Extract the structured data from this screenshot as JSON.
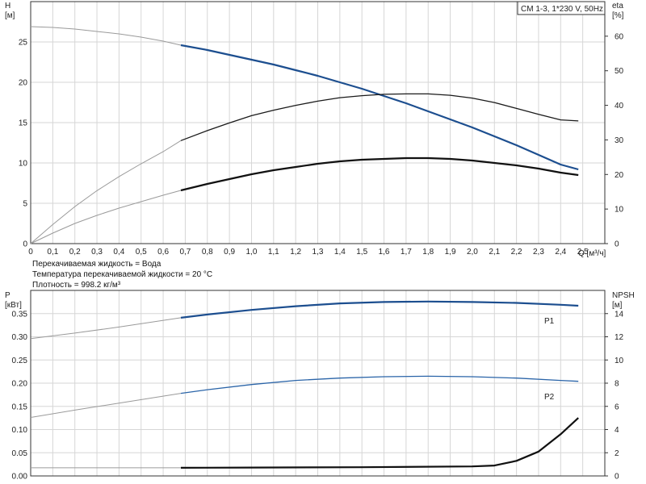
{
  "chart_data": [
    {
      "type": "line",
      "title": "",
      "model_label": "CM 1-3, 1*230 V, 50Hz",
      "xlabel": "Q [м³/ч]",
      "ylabel_left": [
        "H",
        "[м]"
      ],
      "ylabel_right": [
        "eta",
        "[%]"
      ],
      "xlim": [
        0,
        2.6
      ],
      "ylim_left": [
        0,
        30
      ],
      "ylim_right": [
        0,
        70
      ],
      "x_ticks": [
        0,
        0.1,
        0.2,
        0.3,
        0.4,
        0.5,
        0.6,
        0.7,
        0.8,
        0.9,
        1.0,
        1.1,
        1.2,
        1.3,
        1.4,
        1.5,
        1.6,
        1.7,
        1.8,
        1.9,
        2.0,
        2.1,
        2.2,
        2.3,
        2.4,
        2.5
      ],
      "x_tick_labels": [
        "0",
        "0,1",
        "0,2",
        "0,3",
        "0,4",
        "0,5",
        "0,6",
        "0,7",
        "0,8",
        "0,9",
        "1,0",
        "1,1",
        "1,2",
        "1,3",
        "1,4",
        "1,5",
        "1,6",
        "1,7",
        "1,8",
        "1,9",
        "2,0",
        "2,1",
        "2,2",
        "2,3",
        "2,4",
        "2,5"
      ],
      "y_ticks_left": [
        0,
        5,
        10,
        15,
        20,
        25
      ],
      "y_ticks_right": [
        0,
        10,
        20,
        30,
        40,
        50,
        60
      ],
      "grid": true,
      "series": [
        {
          "axis": "left",
          "color": "#1c4e8f",
          "width": 2.2,
          "x": [
            0,
            0.1,
            0.2,
            0.3,
            0.4,
            0.5,
            0.6,
            0.68,
            0.8,
            0.9,
            1.0,
            1.1,
            1.2,
            1.3,
            1.4,
            1.5,
            1.6,
            1.7,
            1.8,
            1.9,
            2.0,
            2.1,
            2.2,
            2.3,
            2.4,
            2.48
          ],
          "y": [
            26.9,
            26.8,
            26.6,
            26.3,
            26.0,
            25.6,
            25.1,
            24.6,
            24.0,
            23.4,
            22.8,
            22.2,
            21.5,
            20.8,
            20.0,
            19.2,
            18.3,
            17.4,
            16.4,
            15.4,
            14.4,
            13.3,
            12.2,
            11.0,
            9.8,
            9.2
          ]
        },
        {
          "axis": "right",
          "color": "#1a1a1a",
          "width": 1.3,
          "x": [
            0,
            0.1,
            0.2,
            0.3,
            0.4,
            0.5,
            0.6,
            0.68,
            0.8,
            0.9,
            1.0,
            1.1,
            1.2,
            1.3,
            1.4,
            1.5,
            1.6,
            1.7,
            1.8,
            1.9,
            2.0,
            2.1,
            2.2,
            2.3,
            2.4,
            2.48
          ],
          "y": [
            0,
            5.5,
            10.7,
            15.3,
            19.4,
            23.1,
            26.6,
            29.8,
            32.7,
            34.9,
            37.0,
            38.6,
            40.0,
            41.2,
            42.2,
            42.8,
            43.2,
            43.3,
            43.3,
            42.9,
            42.1,
            40.8,
            39.1,
            37.4,
            35.8,
            35.5
          ]
        },
        {
          "axis": "left",
          "color": "#111111",
          "width": 2.2,
          "x": [
            0,
            0.1,
            0.2,
            0.3,
            0.4,
            0.5,
            0.6,
            0.68,
            0.8,
            0.9,
            1.0,
            1.1,
            1.2,
            1.3,
            1.4,
            1.5,
            1.6,
            1.7,
            1.8,
            1.9,
            2.0,
            2.1,
            2.2,
            2.3,
            2.4,
            2.48
          ],
          "y": [
            0,
            1.3,
            2.5,
            3.5,
            4.4,
            5.2,
            6.0,
            6.6,
            7.4,
            8.0,
            8.6,
            9.1,
            9.5,
            9.9,
            10.2,
            10.4,
            10.5,
            10.6,
            10.6,
            10.5,
            10.3,
            10.0,
            9.7,
            9.3,
            8.8,
            8.5
          ]
        }
      ],
      "notes": [
        "Перекачиваемая жидкость = Вода",
        "Температура перекачиваемой жидкости = 20 °C",
        "Плотность = 998.2 кг/м³"
      ]
    },
    {
      "type": "line",
      "title": "",
      "ylabel_left": [
        "P",
        "[кВт]"
      ],
      "ylabel_right": [
        "NPSH",
        "[м]"
      ],
      "xlim": [
        0,
        2.6
      ],
      "ylim_left": [
        0,
        0.4
      ],
      "ylim_right": [
        0,
        16
      ],
      "y_ticks_left": [
        0,
        0.05,
        0.1,
        0.15,
        0.2,
        0.25,
        0.3,
        0.35
      ],
      "y_tick_labels_left": [
        "0.00",
        "0.05",
        "0.10",
        "0.15",
        "0.20",
        "0.25",
        "0.30",
        "0.35"
      ],
      "y_ticks_right": [
        0,
        2,
        4,
        6,
        8,
        10,
        12,
        14
      ],
      "grid": true,
      "series": [
        {
          "name": "P1",
          "axis": "left",
          "color": "#1c4e8f",
          "width": 2.2,
          "x": [
            0,
            0.2,
            0.4,
            0.68,
            0.8,
            1.0,
            1.2,
            1.4,
            1.6,
            1.8,
            2.0,
            2.2,
            2.4,
            2.48
          ],
          "y": [
            0.296,
            0.308,
            0.321,
            0.341,
            0.348,
            0.358,
            0.366,
            0.372,
            0.375,
            0.376,
            0.375,
            0.373,
            0.369,
            0.367
          ]
        },
        {
          "name": "P2",
          "axis": "left",
          "color": "#2a64a8",
          "width": 1.3,
          "x": [
            0,
            0.2,
            0.4,
            0.68,
            0.8,
            1.0,
            1.2,
            1.4,
            1.6,
            1.8,
            2.0,
            2.2,
            2.4,
            2.48
          ],
          "y": [
            0.126,
            0.142,
            0.157,
            0.178,
            0.186,
            0.197,
            0.206,
            0.211,
            0.214,
            0.215,
            0.214,
            0.211,
            0.206,
            0.204
          ]
        },
        {
          "axis": "right",
          "color": "#111111",
          "width": 2.2,
          "x": [
            0,
            0.68,
            1.0,
            1.5,
            2.0,
            2.1,
            2.2,
            2.3,
            2.4,
            2.48
          ],
          "y": [
            0.7,
            0.7,
            0.72,
            0.75,
            0.82,
            0.9,
            1.3,
            2.1,
            3.6,
            5.0
          ]
        }
      ]
    }
  ]
}
